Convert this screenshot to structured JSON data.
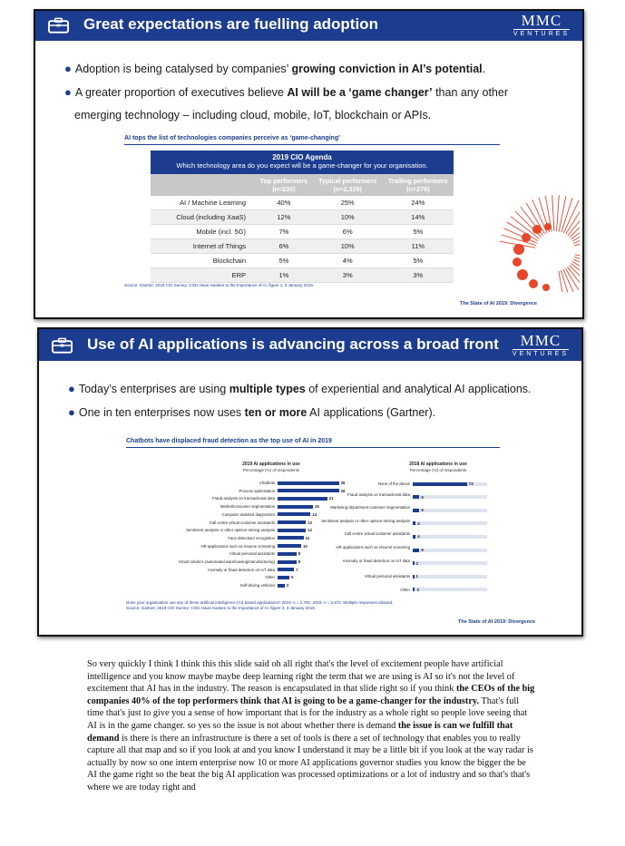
{
  "slide1": {
    "title": "Great expectations are fuelling adoption",
    "logo_main": "MMC",
    "logo_sub": "VENTURES",
    "bullets": [
      {
        "pre": "Adoption is being catalysed by companies’ ",
        "bold": "growing conviction in AI’s potential",
        "post": "."
      },
      {
        "pre": "A greater proportion of executives believe ",
        "bold": "AI will be a ‘game changer’",
        "post": " than any other"
      }
    ],
    "bullet_cont": "emerging technology – including cloud, mobile, IoT, blockchain or APIs.",
    "chart_title": "AI tops the list of technologies companies perceive as ‘game-changing’",
    "table": {
      "heading": "2019 CIO Agenda",
      "question": "Which technology area do you expect will be a game-changer for your organisation.",
      "columns": [
        {
          "name": "Top performers",
          "n": "(n=230)"
        },
        {
          "name": "Typical performers",
          "n": "(n=2,329)"
        },
        {
          "name": "Trailing performers",
          "n": "(n=276)"
        }
      ],
      "rows": [
        {
          "label": "AI / Machine Learning",
          "values": [
            "40%",
            "25%",
            "24%"
          ]
        },
        {
          "label": "Cloud (including XaaS)",
          "values": [
            "12%",
            "10%",
            "14%"
          ]
        },
        {
          "label": "Mobile (incl. 5G)",
          "values": [
            "7%",
            "6%",
            "5%"
          ]
        },
        {
          "label": "Internet of Things",
          "values": [
            "6%",
            "10%",
            "11%"
          ]
        },
        {
          "label": "Blockchain",
          "values": [
            "5%",
            "4%",
            "5%"
          ]
        },
        {
          "label": "ERP",
          "values": [
            "1%",
            "3%",
            "3%"
          ]
        }
      ]
    },
    "source": "Source: Gartner, 2019 CIO Survey: CIOs Have Awoken to the Importance of AI, figure 1, 3 January 2019.",
    "footer": "The State of AI 2019: Divergence",
    "accent_color": "#e8472c"
  },
  "slide2": {
    "title": "Use of AI applications is advancing across a broad front",
    "logo_main": "MMC",
    "logo_sub": "VENTURES",
    "bullets": [
      {
        "pre": "Today’s enterprises are using ",
        "bold": "multiple types",
        "post": " of experiential and analytical AI applications."
      },
      {
        "pre": "One in ten enterprises now uses ",
        "bold": "ten or more",
        "post": " AI applications (Gartner)."
      }
    ],
    "chart_title": "Chatbots have displaced fraud detection as the top use of AI in 2019",
    "left_chart": {
      "title": "2019 AI applications in use",
      "subtitle": "Percentage (%) of respondents"
    },
    "right_chart": {
      "title": "2018 AI applications in use",
      "subtitle": "Percentage (%) of respondents"
    },
    "source_line1": "Does your organisation use any of these artificial intelligence (AI) based applications? 2019: n = 2,791; 2018: n = 2,672. Multiple responses allowed.",
    "source_line2": "Source: Gartner, 2019 CIO Survey: CIOs Have Awoken to the Importance of AI, figure 3, 3 January 2019.",
    "footer": "The State of AI 2019: Divergence"
  },
  "chart_data": [
    {
      "type": "bar",
      "title": "2019 AI applications in use",
      "ylabel": "Percentage (%) of respondents",
      "categories": [
        "Chatbots",
        "Process optimisation",
        "Fraud analysis on transactional data",
        "Market/consumer segmentation",
        "Computer assisted diagnostics",
        "Call centre virtual customer assistants",
        "Sentiment analysis or other opinion-mining analysis",
        "Face detection/ recognition",
        "HR applications such as resume screening",
        "Virtual personal assistants",
        "Smart robotics (automated warehousing/manufacturing)",
        "Anomaly or fraud detection on IoT data",
        "Other",
        "Self-driving vehicles"
      ],
      "values": [
        26,
        26,
        21,
        15,
        14,
        12,
        12,
        11,
        10,
        8,
        8,
        7,
        5,
        3
      ]
    },
    {
      "type": "bar",
      "title": "2018 AI applications in use",
      "ylabel": "Percentage (%) of respondents",
      "categories": [
        "None of the above",
        "Fraud analysis on transactional data",
        "Marketing department customer segmentation",
        "Sentiment analysis or other opinion-mining analysis",
        "Call centre virtual customer assistants",
        "HR applications such as résumé screening",
        "Anomaly or fraud detection on IoT data",
        "Virtual personal assistants",
        "Other"
      ],
      "values": [
        73,
        9,
        9,
        4,
        4,
        9,
        2,
        1,
        3
      ]
    }
  ],
  "transcript": [
    {
      "t": "So very quickly I think I think this this slide said oh all right that's the level of excitement people have artificial intelligence and you know maybe maybe deep learning right the term that we are using is AI so it's not the level of excitement that AI has in the industry. The reason is encapsulated in that slide right so if you think ",
      "b": false
    },
    {
      "t": "the CEOs of the big companies 40% of the top performers think that AI is going to be a game-changer for the industry.",
      "b": true
    },
    {
      "t": " That's full time that's just to give you a sense of how important that is for the industry as a whole right so people love seeing that AI is in the game changer. so yes so the issue is not about whether there is demand ",
      "b": false
    },
    {
      "t": "the issue is can we fulfill that demand",
      "b": true
    },
    {
      "t": " is there is there an infrastructure is there a set of tools is there a set of technology that enables you to really capture all that map and so if you look at and you know I understand it may be a little bit if you look at the way radar is actually by now so one intern enterprise now 10 or more AI applications governor studies you know the bigger the be AI the game right so the beat the big AI application was processed optimizations or a lot of industry and so that's that's where we are today right and",
      "b": false
    }
  ]
}
